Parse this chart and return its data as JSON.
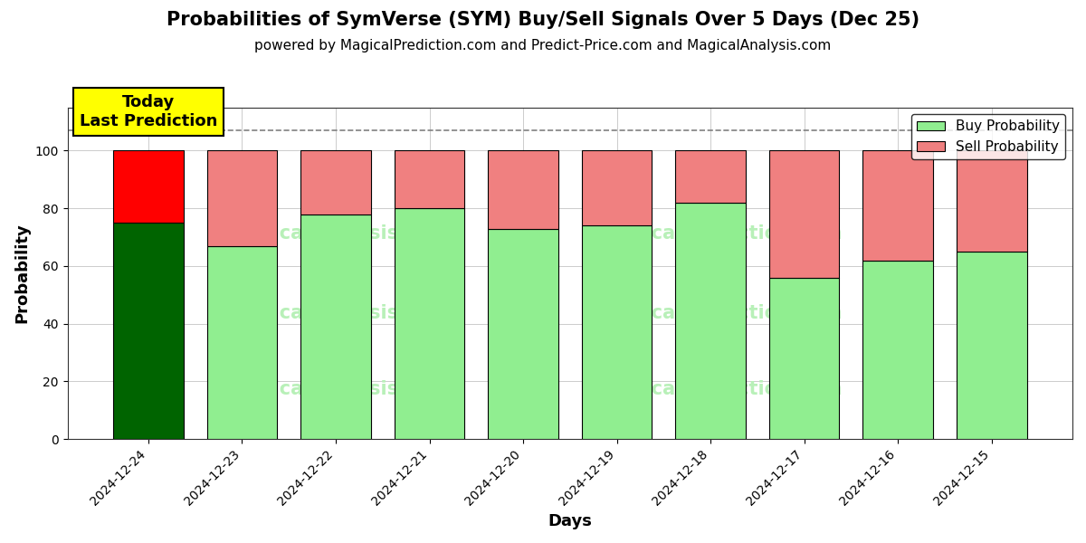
{
  "title": "Probabilities of SymVerse (SYM) Buy/Sell Signals Over 5 Days (Dec 25)",
  "subtitle": "powered by MagicalPrediction.com and Predict-Price.com and MagicalAnalysis.com",
  "xlabel": "Days",
  "ylabel": "Probability",
  "categories": [
    "2024-12-24",
    "2024-12-23",
    "2024-12-22",
    "2024-12-21",
    "2024-12-20",
    "2024-12-19",
    "2024-12-18",
    "2024-12-17",
    "2024-12-16",
    "2024-12-15"
  ],
  "buy_values": [
    75,
    67,
    78,
    80,
    73,
    74,
    82,
    56,
    62,
    65
  ],
  "sell_values": [
    25,
    33,
    22,
    20,
    27,
    26,
    18,
    44,
    38,
    35
  ],
  "today_index": 0,
  "today_buy_color": "#006400",
  "today_sell_color": "#ff0000",
  "buy_color": "#90ee90",
  "sell_color": "#f08080",
  "today_label_bg": "#ffff00",
  "dashed_line_y": 107,
  "ylim": [
    0,
    115
  ],
  "yticks": [
    0,
    20,
    40,
    60,
    80,
    100
  ],
  "bar_edge_color": "#000000",
  "bar_linewidth": 0.8,
  "grid_color": "#cccccc",
  "background_color": "#ffffff",
  "watermark_color": "#b8f0b8",
  "legend_buy_label": "Buy Probability",
  "legend_sell_label": "Sell Probability",
  "title_fontsize": 15,
  "subtitle_fontsize": 11,
  "axis_label_fontsize": 13,
  "tick_fontsize": 10,
  "legend_fontsize": 11,
  "bar_width": 0.75
}
